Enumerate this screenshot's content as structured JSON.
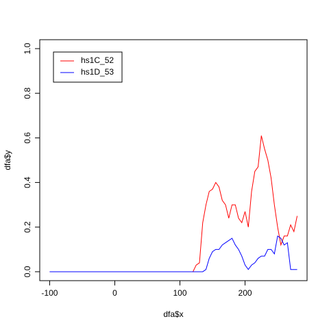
{
  "chart_data": {
    "type": "line",
    "x_label": "dfa$x",
    "y_label": "dfa$y",
    "x": [
      -100,
      120,
      125,
      130,
      135,
      140,
      145,
      150,
      155,
      160,
      165,
      170,
      175,
      180,
      185,
      190,
      195,
      200,
      205,
      210,
      215,
      220,
      225,
      230,
      235,
      240,
      245,
      250,
      255,
      260,
      265,
      270,
      275,
      280
    ],
    "series": [
      {
        "name": "hs1C_52",
        "color": "#ff0000",
        "values": [
          0,
          0,
          0.03,
          0.04,
          0.22,
          0.3,
          0.36,
          0.37,
          0.4,
          0.38,
          0.32,
          0.3,
          0.24,
          0.3,
          0.3,
          0.24,
          0.22,
          0.27,
          0.2,
          0.36,
          0.45,
          0.47,
          0.61,
          0.55,
          0.5,
          0.42,
          0.3,
          0.2,
          0.12,
          0.16,
          0.16,
          0.21,
          0.18,
          0.25
        ]
      },
      {
        "name": "hs1D_53",
        "color": "#0000ff",
        "values": [
          0,
          0,
          0,
          0,
          0,
          0.01,
          0.06,
          0.09,
          0.1,
          0.1,
          0.12,
          0.13,
          0.14,
          0.15,
          0.12,
          0.1,
          0.07,
          0.03,
          0.01,
          0.03,
          0.04,
          0.06,
          0.07,
          0.07,
          0.1,
          0.1,
          0.08,
          0.16,
          0.15,
          0.12,
          0.13,
          0.01,
          0.01,
          0.01
        ]
      }
    ],
    "xlim": [
      -115.2,
      295.2
    ],
    "ylim": [
      -0.04,
      1.04
    ],
    "xticks": [
      -100,
      0,
      100,
      200
    ],
    "yticks": [
      {
        "value": 0,
        "label": "0.0"
      },
      0.2,
      0.4,
      0.6,
      0.8,
      {
        "value": 1,
        "label": "1.0"
      }
    ],
    "legend": "top-left"
  }
}
